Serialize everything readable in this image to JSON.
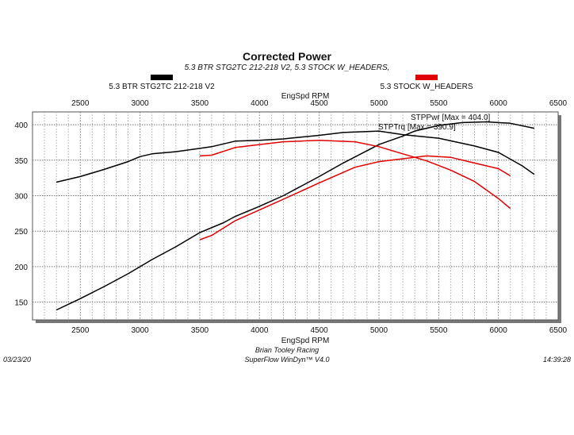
{
  "chart_data": {
    "type": "line",
    "title": "Corrected Power",
    "subtitle": "5.3 BTR STG2TC 212-218 V2, 5.3 STOCK W_HEADERS,",
    "xlabel": "EngSpd RPM",
    "ylabel": "",
    "xlim": [
      2100,
      6500
    ],
    "ylim": [
      125,
      418
    ],
    "x_ticks": [
      2500,
      3000,
      3500,
      4000,
      4500,
      5000,
      5500,
      6000,
      6500
    ],
    "y_ticks": [
      150,
      200,
      250,
      300,
      350,
      400
    ],
    "grid": true,
    "legend": [
      {
        "name": "5.3 BTR STG2TC 212-218 V2",
        "color": "#000000"
      },
      {
        "name": "5.3 STOCK W_HEADERS",
        "color": "#e00000"
      }
    ],
    "annotations": [
      "STPPwr [Max = 404.0]",
      "STPTrq [Max = 390.9]"
    ],
    "series": [
      {
        "run": "5.3 BTR STG2TC 212-218 V2",
        "quantity": "STPTrq",
        "color": "#000000",
        "x": [
          2300,
          2500,
          2700,
          2900,
          3000,
          3100,
          3300,
          3600,
          3800,
          4000,
          4200,
          4500,
          4700,
          5000,
          5200,
          5500,
          5800,
          6000,
          6200,
          6300
        ],
        "y": [
          319,
          327,
          337,
          348,
          355,
          359,
          362,
          369,
          377,
          378,
          380,
          385,
          389,
          391,
          386,
          381,
          370,
          361,
          342,
          330
        ]
      },
      {
        "run": "5.3 BTR STG2TC 212-218 V2",
        "quantity": "STPPwr",
        "color": "#000000",
        "x": [
          2300,
          2500,
          2700,
          2900,
          3100,
          3300,
          3500,
          3700,
          3800,
          4000,
          4200,
          4500,
          4700,
          5000,
          5200,
          5300,
          5500,
          5700,
          5900,
          6100,
          6300
        ],
        "y": [
          139,
          155,
          172,
          190,
          210,
          228,
          248,
          262,
          271,
          285,
          300,
          327,
          346,
          372,
          384,
          391,
          399,
          403,
          404,
          402,
          395
        ]
      },
      {
        "run": "5.3 STOCK W_HEADERS",
        "quantity": "STPTrq",
        "color": "#e00000",
        "x": [
          3500,
          3600,
          3800,
          4000,
          4200,
          4500,
          4800,
          5000,
          5200,
          5400,
          5600,
          5800,
          6000,
          6100
        ],
        "y": [
          356,
          357,
          368,
          372,
          376,
          378,
          376,
          369,
          359,
          349,
          336,
          320,
          296,
          282
        ]
      },
      {
        "run": "5.3 STOCK W_HEADERS",
        "quantity": "STPPwr",
        "color": "#e00000",
        "x": [
          3500,
          3600,
          3800,
          4000,
          4200,
          4500,
          4800,
          5000,
          5200,
          5400,
          5600,
          5800,
          6000,
          6100
        ],
        "y": [
          238,
          244,
          265,
          280,
          295,
          318,
          340,
          348,
          352,
          356,
          354,
          346,
          338,
          328
        ]
      }
    ]
  },
  "footer": {
    "date": "03/23/20",
    "time": "14:39:28",
    "company": "Brian Tooley Racing",
    "software": "SuperFlow WinDyn™ V4.0"
  }
}
